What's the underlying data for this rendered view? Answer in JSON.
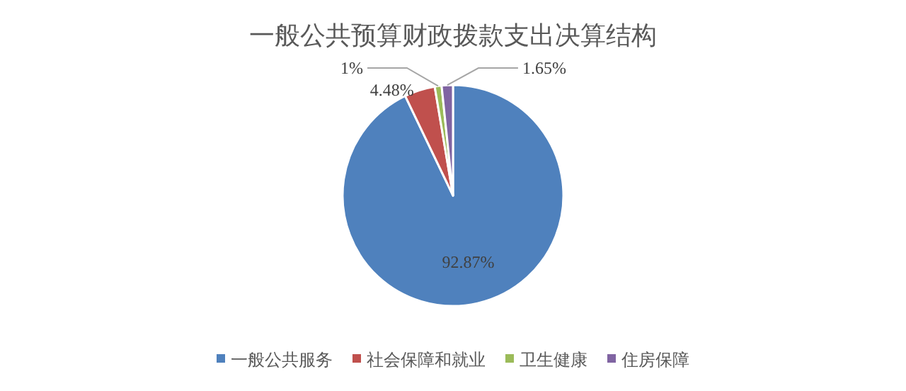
{
  "chart_data": {
    "type": "pie",
    "title": "一般公共预算财政拨款支出决算结构",
    "categories": [
      "一般公共服务",
      "社会保障和就业",
      "卫生健康",
      "住房保障"
    ],
    "values": [
      92.87,
      4.48,
      1,
      1.65
    ],
    "colors": [
      "#4f81bd",
      "#c0504d",
      "#9bbb59",
      "#8064a2"
    ],
    "value_labels": [
      "92.87%",
      "4.48%",
      "1%",
      "1.65%"
    ],
    "legend": "bottom"
  }
}
